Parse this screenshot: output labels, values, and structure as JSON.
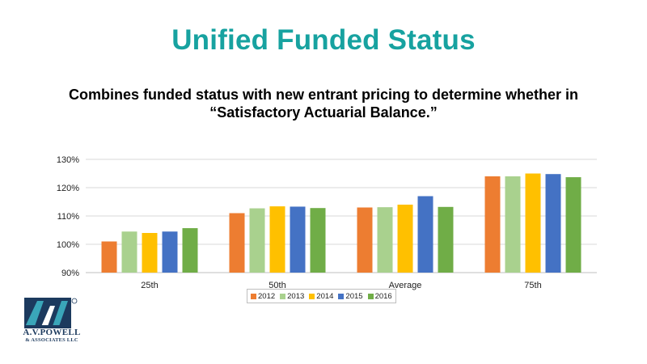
{
  "slide": {
    "title": "Unified Funded Status",
    "subtitle": "Combines funded status with new entrant pricing to determine whether in “Satisfactory Actuarial Balance.”"
  },
  "logo": {
    "name": "A.V.POWELL",
    "sub": "& ASSOCIATES LLC",
    "mark": "AVP"
  },
  "chart_data": {
    "type": "bar",
    "categories": [
      "25th",
      "50th",
      "Average",
      "75th"
    ],
    "series": [
      {
        "name": "2012",
        "color": "#ed7d31",
        "values": [
          101,
          111,
          113,
          124
        ]
      },
      {
        "name": "2013",
        "color": "#a9d18e",
        "values": [
          104.5,
          112.7,
          113.1,
          124
        ]
      },
      {
        "name": "2014",
        "color": "#ffc000",
        "values": [
          104,
          113.4,
          114,
          125
        ]
      },
      {
        "name": "2015",
        "color": "#4472c4",
        "values": [
          104.5,
          113.3,
          117,
          124.8
        ]
      },
      {
        "name": "2016",
        "color": "#70ad47",
        "values": [
          105.7,
          112.8,
          113.2,
          123.7
        ]
      }
    ],
    "ylim": [
      90,
      130
    ],
    "yticks": [
      90,
      100,
      110,
      120,
      130
    ],
    "ytick_labels": [
      "90%",
      "100%",
      "110%",
      "120%",
      "130%"
    ],
    "grid": true,
    "legend_position": "bottom"
  }
}
